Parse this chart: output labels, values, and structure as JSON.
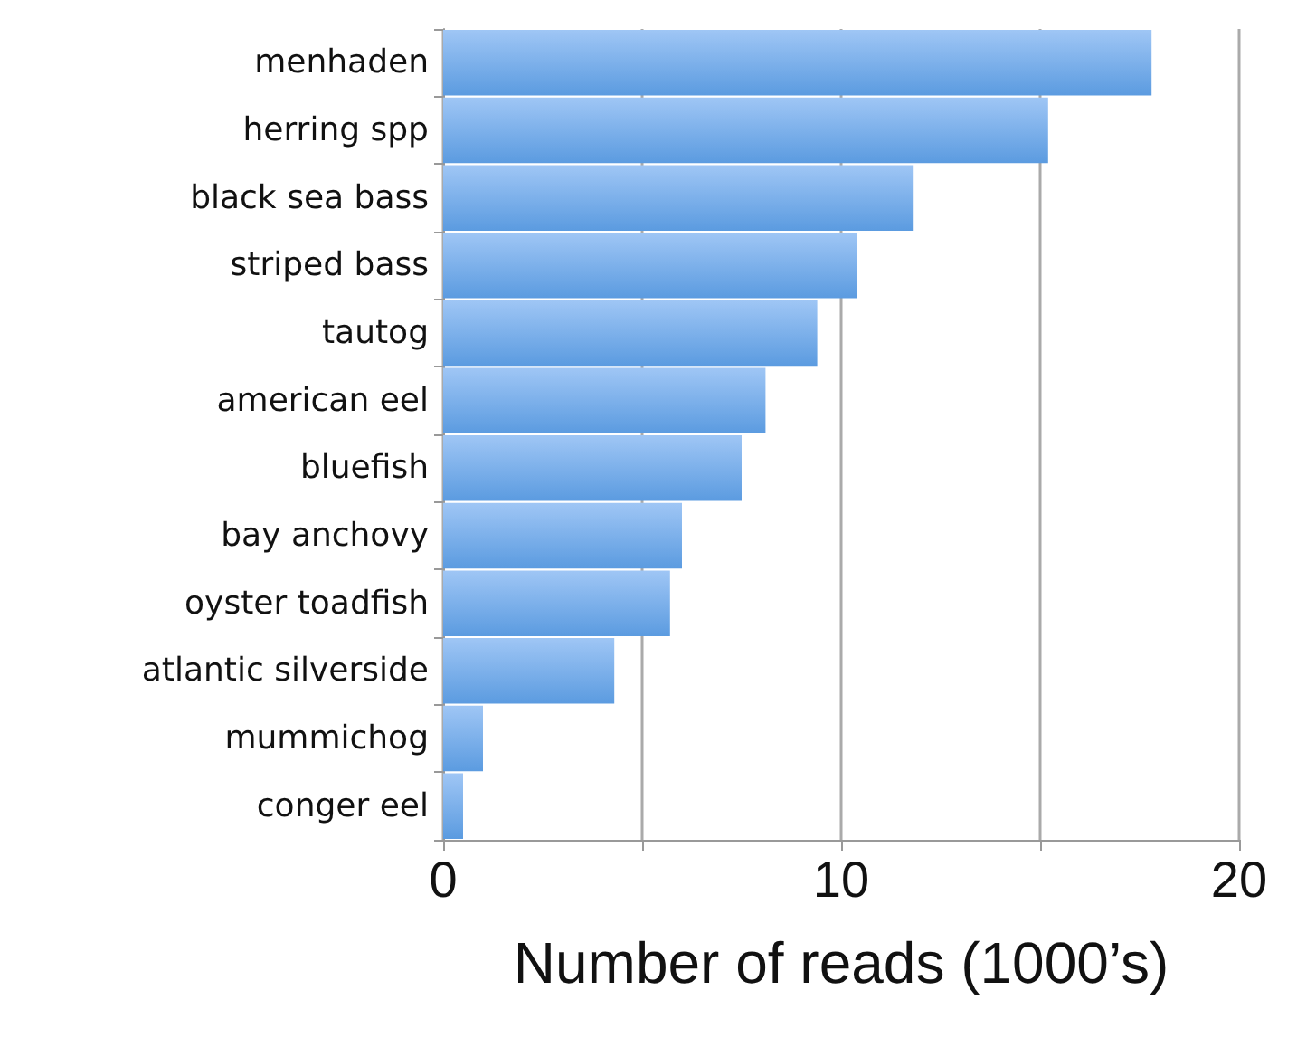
{
  "chart_data": {
    "type": "bar",
    "orientation": "horizontal",
    "xlabel": "Number of reads (1000’s)",
    "categories": [
      "menhaden",
      "herring spp",
      "black sea bass",
      "striped bass",
      "tautog",
      "american eel",
      "bluefish",
      "bay anchovy",
      "oyster toadfish",
      "atlantic silverside",
      "mummichog",
      "conger eel"
    ],
    "values": [
      17.8,
      15.2,
      11.8,
      10.4,
      9.4,
      8.1,
      7.5,
      6.0,
      5.7,
      4.3,
      1.0,
      0.5
    ],
    "color": "#5b9be0",
    "xlim": [
      0,
      20
    ],
    "xticks": [
      0,
      {
        "value": 5,
        "label": null
      },
      10,
      {
        "value": 15,
        "label": null
      },
      20
    ],
    "grid": "x"
  }
}
